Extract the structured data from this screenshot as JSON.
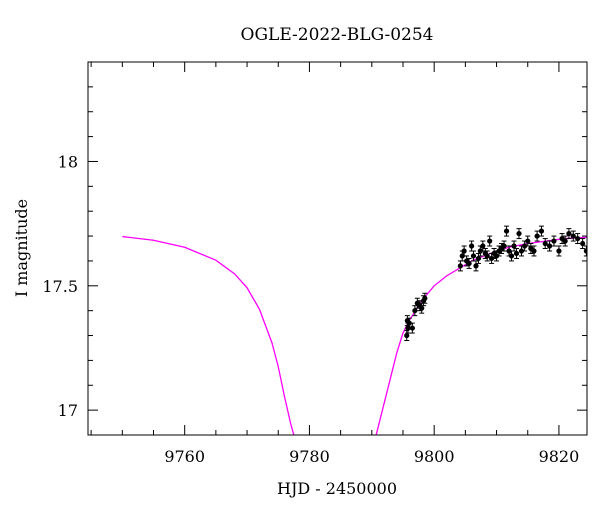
{
  "chart_data": {
    "type": "scatter",
    "title": "OGLE-2022-BLG-0254",
    "xlabel": "HJD - 2450000",
    "ylabel": "I magnitude",
    "xlim": [
      9744.5,
      9824.5
    ],
    "ylim": [
      18.4,
      16.9
    ],
    "y_inverted": true,
    "x_ticks": [
      9760,
      9780,
      9800,
      9820
    ],
    "x_tick_labels": [
      "9760",
      "9780",
      "9800",
      "9820"
    ],
    "y_ticks": [
      17,
      17.5,
      18
    ],
    "y_tick_labels": [
      "17",
      "17.5",
      "18"
    ],
    "grid": false,
    "legend": null,
    "colors": {
      "model": "#ff00ff",
      "data": "#000000"
    },
    "model": {
      "name": "",
      "x": [
        9744.5,
        9750,
        9755,
        9760,
        9765,
        9768,
        9770,
        9772,
        9774,
        9775,
        9776,
        9777,
        9777.5,
        9778.0,
        9790.5,
        9791,
        9792,
        9793,
        9794,
        9795,
        9796,
        9797,
        9798,
        9799,
        9800,
        9802,
        9804,
        9806,
        9808,
        9810,
        9812,
        9815,
        9818,
        9821,
        9824.5
      ],
      "y": [
        17.705,
        17.698,
        17.683,
        17.655,
        17.603,
        17.548,
        17.492,
        17.405,
        17.27,
        17.175,
        17.055,
        16.945,
        16.9,
        16.88,
        16.88,
        16.93,
        17.03,
        17.13,
        17.23,
        17.31,
        17.36,
        17.4,
        17.44,
        17.47,
        17.5,
        17.54,
        17.57,
        17.6,
        17.62,
        17.64,
        17.655,
        17.67,
        17.68,
        17.69,
        17.695
      ]
    },
    "series": [
      {
        "name": "",
        "x": [
          9795.6,
          9795.8,
          9796.0,
          9795.7,
          9796.5,
          9796.9,
          9797.3,
          9797.7,
          9798.0,
          9798.3,
          9798.5,
          9804.2,
          9804.5,
          9804.8,
          9805.2,
          9805.6,
          9806.0,
          9806.3,
          9806.7,
          9807.1,
          9807.4,
          9807.8,
          9808.2,
          9808.5,
          9808.9,
          9809.2,
          9809.6,
          9810.0,
          9810.4,
          9810.8,
          9811.2,
          9811.6,
          9812.0,
          9812.4,
          9812.8,
          9813.2,
          9813.6,
          9814.0,
          9814.5,
          9815.0,
          9815.5,
          9816.0,
          9816.5,
          9817.2,
          9817.8,
          9818.5,
          9819.2,
          9820.0,
          9820.5,
          9821.0,
          9821.6,
          9822.3,
          9823.0,
          9823.8,
          9824.4
        ],
        "y": [
          17.3,
          17.33,
          17.35,
          17.36,
          17.33,
          17.4,
          17.43,
          17.42,
          17.41,
          17.44,
          17.45,
          17.58,
          17.62,
          17.64,
          17.6,
          17.59,
          17.66,
          17.62,
          17.58,
          17.61,
          17.64,
          17.66,
          17.63,
          17.62,
          17.68,
          17.61,
          17.63,
          17.62,
          17.64,
          17.65,
          17.66,
          17.72,
          17.64,
          17.62,
          17.66,
          17.63,
          17.71,
          17.64,
          17.66,
          17.68,
          17.65,
          17.64,
          17.7,
          17.72,
          17.67,
          17.66,
          17.68,
          17.64,
          17.69,
          17.68,
          17.71,
          17.7,
          17.69,
          17.67,
          17.64
        ],
        "err": [
          0.02,
          0.02,
          0.02,
          0.02,
          0.02,
          0.02,
          0.02,
          0.02,
          0.02,
          0.02,
          0.02,
          0.02,
          0.02,
          0.02,
          0.02,
          0.02,
          0.02,
          0.02,
          0.02,
          0.02,
          0.02,
          0.02,
          0.02,
          0.02,
          0.02,
          0.02,
          0.02,
          0.02,
          0.02,
          0.02,
          0.02,
          0.02,
          0.02,
          0.02,
          0.02,
          0.02,
          0.02,
          0.02,
          0.02,
          0.02,
          0.02,
          0.02,
          0.02,
          0.02,
          0.02,
          0.02,
          0.02,
          0.02,
          0.02,
          0.02,
          0.02,
          0.02,
          0.02,
          0.02,
          0.02
        ]
      }
    ]
  }
}
